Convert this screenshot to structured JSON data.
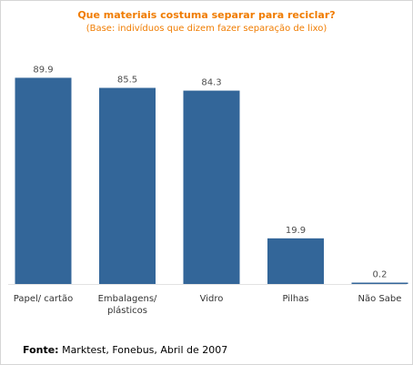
{
  "chart_data": {
    "type": "bar",
    "title": "Que materiais costuma separar para reciclar?",
    "subtitle": "(Base: indivíduos que dizem fazer separação de lixo)",
    "xlabel": "",
    "ylabel": "",
    "ylim": [
      0,
      100
    ],
    "grid": false,
    "legend": "none",
    "categories": [
      [
        "Papel/ cartão"
      ],
      [
        "Embalagens/",
        "plásticos"
      ],
      [
        "Vidro"
      ],
      [
        "Pilhas"
      ],
      [
        "Não Sabe"
      ]
    ],
    "value_labels": [
      "89.9",
      "85.5",
      "84.3",
      "19.9",
      "0.2"
    ],
    "values": [
      89.9,
      85.5,
      84.3,
      19.9,
      0.2
    ],
    "colors": {
      "bar": "#336699",
      "title": "#f07c00"
    }
  },
  "source": {
    "label": "Fonte:",
    "text": " Marktest, Fonebus, Abril de 2007"
  }
}
